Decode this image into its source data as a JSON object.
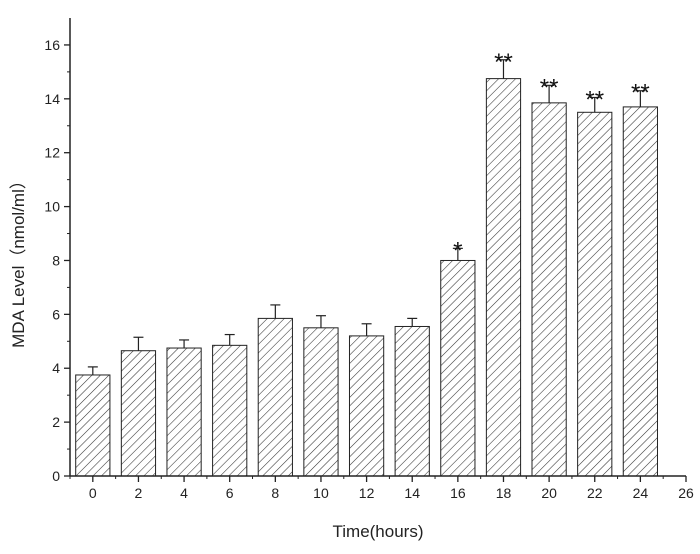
{
  "chart_data": {
    "type": "bar",
    "xlabel": "Time(hours)",
    "ylabel": "MDA Level（nmol/ml）",
    "xlim": [
      -1,
      26
    ],
    "ylim": [
      0,
      17
    ],
    "xticks": [
      "0",
      "2",
      "4",
      "6",
      "8",
      "10",
      "12",
      "14",
      "16",
      "18",
      "20",
      "22",
      "24",
      "26"
    ],
    "yticks": [
      "0",
      "2",
      "4",
      "6",
      "8",
      "10",
      "12",
      "14",
      "16"
    ],
    "x": [
      0,
      2,
      4,
      6,
      8,
      10,
      12,
      14,
      16,
      18,
      20,
      22,
      24
    ],
    "values": [
      3.75,
      4.65,
      4.75,
      4.85,
      5.85,
      5.5,
      5.2,
      5.55,
      8.0,
      14.75,
      13.85,
      13.5,
      13.7
    ],
    "errors": [
      0.3,
      0.5,
      0.3,
      0.4,
      0.5,
      0.45,
      0.45,
      0.3,
      0.45,
      0.7,
      0.65,
      0.55,
      0.6
    ],
    "significance": [
      "",
      "",
      "",
      "",
      "",
      "",
      "",
      "",
      "*",
      "**",
      "**",
      "**",
      "**"
    ],
    "bar_fill": "diagonal hatch",
    "grid": false
  }
}
